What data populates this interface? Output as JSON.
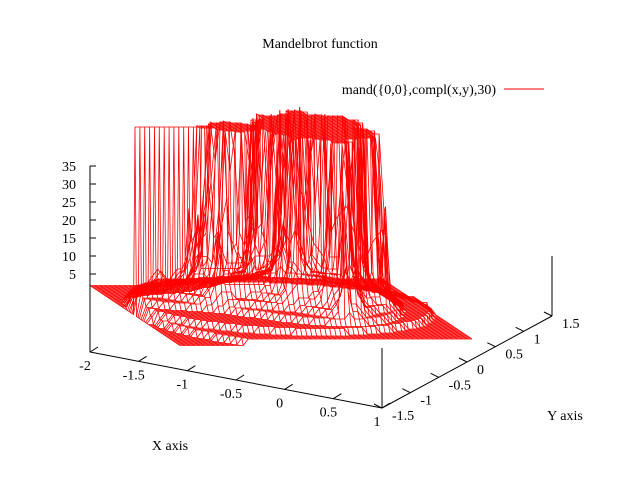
{
  "chart_data": {
    "type": "surface",
    "title": "Mandelbrot function",
    "xlabel": "X axis",
    "ylabel": "Y axis",
    "zlabel": "",
    "legend_placement": "top-right",
    "series": [
      {
        "name": "mand({0,0},compl(x,y),30)",
        "color": "#ff0000",
        "function": "mand({0,0},compl(x,y),30)",
        "max_iterations": 30
      }
    ],
    "xlim": [
      -2,
      1
    ],
    "ylim": [
      -1.5,
      1.5
    ],
    "zlim": [
      0,
      35
    ],
    "x_ticks": [
      "-2",
      "-1.5",
      "-1",
      "-0.5",
      "0",
      "0.5",
      "1"
    ],
    "y_ticks": [
      "-1.5",
      "-1",
      "-0.5",
      "0",
      "0.5",
      "1",
      "1.5"
    ],
    "z_ticks": [
      "5",
      "10",
      "15",
      "20",
      "25",
      "30",
      "35"
    ],
    "grid": false
  }
}
